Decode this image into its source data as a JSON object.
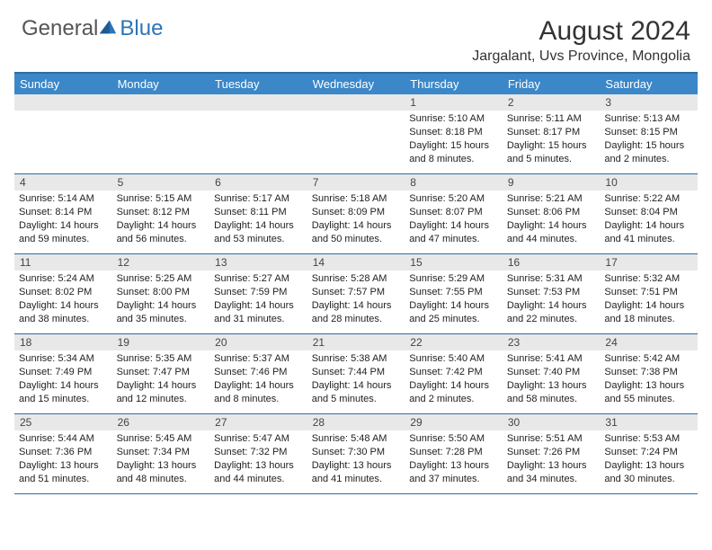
{
  "logo": {
    "text1": "General",
    "text2": "Blue"
  },
  "title": "August 2024",
  "location": "Jargalant, Uvs Province, Mongolia",
  "colors": {
    "header_bg": "#3b87c8",
    "header_border": "#2d6ea3",
    "daynum_bg": "#e8e8e8",
    "text": "#222222",
    "logo_blue": "#2d74b8"
  },
  "day_names": [
    "Sunday",
    "Monday",
    "Tuesday",
    "Wednesday",
    "Thursday",
    "Friday",
    "Saturday"
  ],
  "weeks": [
    [
      {
        "n": "",
        "sr": "",
        "ss": "",
        "dl": ""
      },
      {
        "n": "",
        "sr": "",
        "ss": "",
        "dl": ""
      },
      {
        "n": "",
        "sr": "",
        "ss": "",
        "dl": ""
      },
      {
        "n": "",
        "sr": "",
        "ss": "",
        "dl": ""
      },
      {
        "n": "1",
        "sr": "5:10 AM",
        "ss": "8:18 PM",
        "dl": "15 hours and 8 minutes."
      },
      {
        "n": "2",
        "sr": "5:11 AM",
        "ss": "8:17 PM",
        "dl": "15 hours and 5 minutes."
      },
      {
        "n": "3",
        "sr": "5:13 AM",
        "ss": "8:15 PM",
        "dl": "15 hours and 2 minutes."
      }
    ],
    [
      {
        "n": "4",
        "sr": "5:14 AM",
        "ss": "8:14 PM",
        "dl": "14 hours and 59 minutes."
      },
      {
        "n": "5",
        "sr": "5:15 AM",
        "ss": "8:12 PM",
        "dl": "14 hours and 56 minutes."
      },
      {
        "n": "6",
        "sr": "5:17 AM",
        "ss": "8:11 PM",
        "dl": "14 hours and 53 minutes."
      },
      {
        "n": "7",
        "sr": "5:18 AM",
        "ss": "8:09 PM",
        "dl": "14 hours and 50 minutes."
      },
      {
        "n": "8",
        "sr": "5:20 AM",
        "ss": "8:07 PM",
        "dl": "14 hours and 47 minutes."
      },
      {
        "n": "9",
        "sr": "5:21 AM",
        "ss": "8:06 PM",
        "dl": "14 hours and 44 minutes."
      },
      {
        "n": "10",
        "sr": "5:22 AM",
        "ss": "8:04 PM",
        "dl": "14 hours and 41 minutes."
      }
    ],
    [
      {
        "n": "11",
        "sr": "5:24 AM",
        "ss": "8:02 PM",
        "dl": "14 hours and 38 minutes."
      },
      {
        "n": "12",
        "sr": "5:25 AM",
        "ss": "8:00 PM",
        "dl": "14 hours and 35 minutes."
      },
      {
        "n": "13",
        "sr": "5:27 AM",
        "ss": "7:59 PM",
        "dl": "14 hours and 31 minutes."
      },
      {
        "n": "14",
        "sr": "5:28 AM",
        "ss": "7:57 PM",
        "dl": "14 hours and 28 minutes."
      },
      {
        "n": "15",
        "sr": "5:29 AM",
        "ss": "7:55 PM",
        "dl": "14 hours and 25 minutes."
      },
      {
        "n": "16",
        "sr": "5:31 AM",
        "ss": "7:53 PM",
        "dl": "14 hours and 22 minutes."
      },
      {
        "n": "17",
        "sr": "5:32 AM",
        "ss": "7:51 PM",
        "dl": "14 hours and 18 minutes."
      }
    ],
    [
      {
        "n": "18",
        "sr": "5:34 AM",
        "ss": "7:49 PM",
        "dl": "14 hours and 15 minutes."
      },
      {
        "n": "19",
        "sr": "5:35 AM",
        "ss": "7:47 PM",
        "dl": "14 hours and 12 minutes."
      },
      {
        "n": "20",
        "sr": "5:37 AM",
        "ss": "7:46 PM",
        "dl": "14 hours and 8 minutes."
      },
      {
        "n": "21",
        "sr": "5:38 AM",
        "ss": "7:44 PM",
        "dl": "14 hours and 5 minutes."
      },
      {
        "n": "22",
        "sr": "5:40 AM",
        "ss": "7:42 PM",
        "dl": "14 hours and 2 minutes."
      },
      {
        "n": "23",
        "sr": "5:41 AM",
        "ss": "7:40 PM",
        "dl": "13 hours and 58 minutes."
      },
      {
        "n": "24",
        "sr": "5:42 AM",
        "ss": "7:38 PM",
        "dl": "13 hours and 55 minutes."
      }
    ],
    [
      {
        "n": "25",
        "sr": "5:44 AM",
        "ss": "7:36 PM",
        "dl": "13 hours and 51 minutes."
      },
      {
        "n": "26",
        "sr": "5:45 AM",
        "ss": "7:34 PM",
        "dl": "13 hours and 48 minutes."
      },
      {
        "n": "27",
        "sr": "5:47 AM",
        "ss": "7:32 PM",
        "dl": "13 hours and 44 minutes."
      },
      {
        "n": "28",
        "sr": "5:48 AM",
        "ss": "7:30 PM",
        "dl": "13 hours and 41 minutes."
      },
      {
        "n": "29",
        "sr": "5:50 AM",
        "ss": "7:28 PM",
        "dl": "13 hours and 37 minutes."
      },
      {
        "n": "30",
        "sr": "5:51 AM",
        "ss": "7:26 PM",
        "dl": "13 hours and 34 minutes."
      },
      {
        "n": "31",
        "sr": "5:53 AM",
        "ss": "7:24 PM",
        "dl": "13 hours and 30 minutes."
      }
    ]
  ]
}
